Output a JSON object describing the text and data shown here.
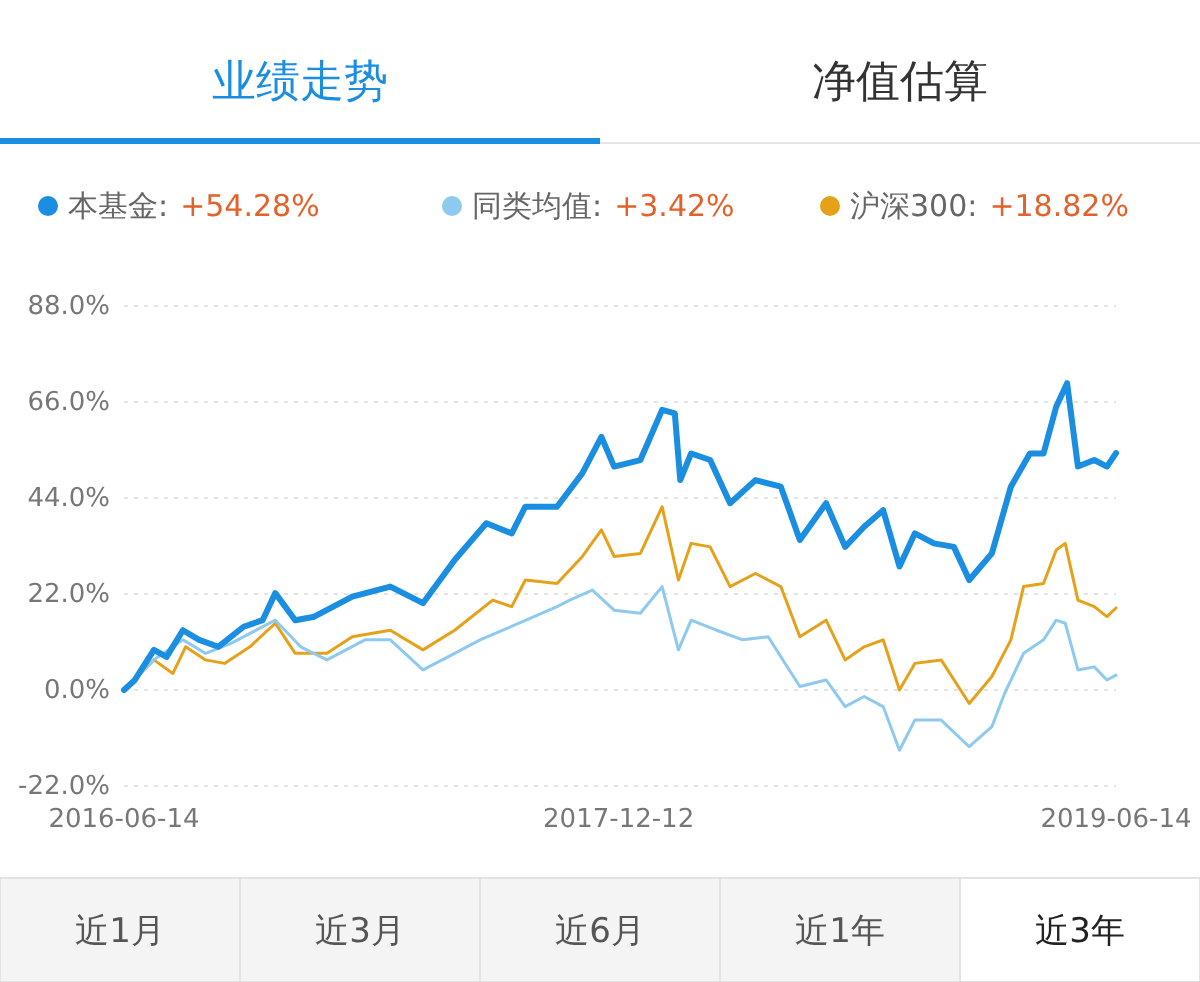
{
  "chart_data": {
    "type": "line",
    "title": "业绩走势",
    "annotations": [
      "+54.28%",
      "+3.42%",
      "+18.82%",
      "净值估算",
      "近1月",
      "近3月",
      "近6月",
      "近1年",
      "近3年"
    ],
    "xlim": [
      "2016-06-14",
      "2019-06-14"
    ],
    "xticks": [
      "2016-06-14",
      "2017-12-12",
      "2019-06-14"
    ],
    "ylim": [
      -22,
      88
    ],
    "yticks": [
      {
        "value": -22,
        "label": "-22.0%"
      },
      {
        "value": 0,
        "label": "0.0%"
      },
      {
        "value": 22,
        "label": "22.0%"
      },
      {
        "value": 44,
        "label": "44.0%"
      },
      {
        "value": 66,
        "label": "66.0%"
      },
      {
        "value": 88,
        "label": "88.0%"
      }
    ],
    "grid": "y",
    "legend": "top",
    "marker": "none",
    "line_style": "solid",
    "series": [
      {
        "name": "沪深300:",
        "color": "#e5a11a",
        "x": [
          "2016-06-14",
          "2016-07-17",
          "2016-08-07",
          "2016-08-21",
          "2016-09-12",
          "2016-10-03",
          "2016-10-31",
          "2016-11-28",
          "2016-12-20",
          "2017-01-24",
          "2017-02-21",
          "2017-04-04",
          "2017-05-10",
          "2017-06-14",
          "2017-07-26",
          "2017-08-16",
          "2017-08-31",
          "2017-10-05",
          "2017-11-02",
          "2017-11-23",
          "2017-12-07",
          "2018-01-05",
          "2018-01-29",
          "2018-02-16",
          "2018-03-02",
          "2018-03-23",
          "2018-04-14",
          "2018-05-12",
          "2018-06-09",
          "2018-06-30",
          "2018-07-29",
          "2018-08-19",
          "2018-09-09",
          "2018-09-30",
          "2018-10-18",
          "2018-11-04",
          "2018-12-03",
          "2019-01-03",
          "2019-01-28",
          "2019-02-18",
          "2019-03-04",
          "2019-03-26",
          "2019-04-09",
          "2019-04-19",
          "2019-05-03",
          "2019-05-21",
          "2019-06-04",
          "2019-06-14"
        ],
        "values": [
          0,
          6.9,
          3.8,
          9.9,
          6.9,
          6.1,
          9.9,
          15.3,
          8.4,
          8.4,
          12.2,
          13.7,
          9.2,
          13.7,
          20.6,
          19.1,
          25.2,
          24.4,
          30.6,
          36.7,
          30.6,
          31.3,
          42,
          25.2,
          33.6,
          32.8,
          23.7,
          26.7,
          23.7,
          12.2,
          16,
          6.9,
          9.9,
          11.5,
          0,
          6.1,
          6.9,
          -3.1,
          3.1,
          11.5,
          23.7,
          24.4,
          32.1,
          33.6,
          20.6,
          19.1,
          16.8,
          18.8
        ]
      },
      {
        "name": "同类均值:",
        "color": "#8ec9ef",
        "x": [
          "2016-06-14",
          "2016-07-17",
          "2016-08-18",
          "2016-09-12",
          "2016-10-10",
          "2016-11-28",
          "2016-12-26",
          "2017-01-24",
          "2017-03-07",
          "2017-04-04",
          "2017-05-10",
          "2017-06-14",
          "2017-07-12",
          "2017-08-24",
          "2017-10-05",
          "2017-10-19",
          "2017-11-13",
          "2017-12-07",
          "2018-01-05",
          "2018-01-29",
          "2018-02-16",
          "2018-03-02",
          "2018-03-30",
          "2018-04-28",
          "2018-05-26",
          "2018-06-30",
          "2018-07-29",
          "2018-08-19",
          "2018-09-09",
          "2018-09-30",
          "2018-10-18",
          "2018-11-04",
          "2018-12-03",
          "2019-01-03",
          "2019-01-28",
          "2019-02-11",
          "2019-03-04",
          "2019-03-26",
          "2019-04-09",
          "2019-04-19",
          "2019-05-03",
          "2019-05-21",
          "2019-06-04",
          "2019-06-14"
        ],
        "values": [
          0,
          6.9,
          11.5,
          8.4,
          10.7,
          16,
          9.9,
          6.9,
          11.5,
          11.5,
          4.6,
          8.4,
          11.5,
          15.3,
          19.1,
          20.6,
          22.9,
          18.3,
          17.6,
          23.7,
          9.2,
          16,
          13.7,
          11.5,
          12.2,
          0.8,
          2.3,
          -3.8,
          -1.5,
          -3.8,
          -13.8,
          -6.9,
          -6.9,
          -13,
          -8.4,
          -0.8,
          8.4,
          11.5,
          16,
          15.3,
          4.6,
          5.3,
          2.3,
          3.4
        ]
      },
      {
        "name": "本基金:",
        "color": "#1a8ee0",
        "x": [
          "2016-06-14",
          "2016-06-26",
          "2016-07-17",
          "2016-07-31",
          "2016-08-18",
          "2016-09-05",
          "2016-09-26",
          "2016-10-24",
          "2016-11-14",
          "2016-11-28",
          "2016-12-20",
          "2017-01-10",
          "2017-02-21",
          "2017-04-04",
          "2017-05-10",
          "2017-06-14",
          "2017-07-19",
          "2017-08-16",
          "2017-08-31",
          "2017-10-05",
          "2017-11-02",
          "2017-11-23",
          "2017-12-07",
          "2018-01-05",
          "2018-01-29",
          "2018-02-12",
          "2018-02-18",
          "2018-03-02",
          "2018-03-23",
          "2018-04-14",
          "2018-05-12",
          "2018-06-09",
          "2018-06-30",
          "2018-07-29",
          "2018-08-19",
          "2018-09-09",
          "2018-09-30",
          "2018-10-18",
          "2018-11-04",
          "2018-11-25",
          "2018-12-17",
          "2019-01-03",
          "2019-01-28",
          "2019-02-18",
          "2019-03-11",
          "2019-03-26",
          "2019-04-09",
          "2019-04-21",
          "2019-05-03",
          "2019-05-21",
          "2019-06-04",
          "2019-06-14"
        ],
        "values": [
          0,
          2.3,
          9.2,
          7.6,
          13.7,
          11.5,
          9.9,
          14.5,
          16,
          22.2,
          16,
          16.8,
          21.4,
          23.7,
          19.9,
          29.8,
          38.2,
          35.9,
          42,
          42,
          49.7,
          58,
          51.2,
          52.7,
          64.2,
          63.4,
          48.1,
          54.2,
          52.7,
          42.8,
          48.1,
          46.6,
          34.4,
          42.8,
          32.8,
          37.4,
          41.2,
          28.3,
          35.9,
          33.6,
          32.8,
          25.2,
          31.3,
          46.6,
          54.2,
          54.2,
          64.9,
          70.3,
          51.2,
          52.7,
          51.2,
          54.3
        ]
      }
    ]
  }
}
